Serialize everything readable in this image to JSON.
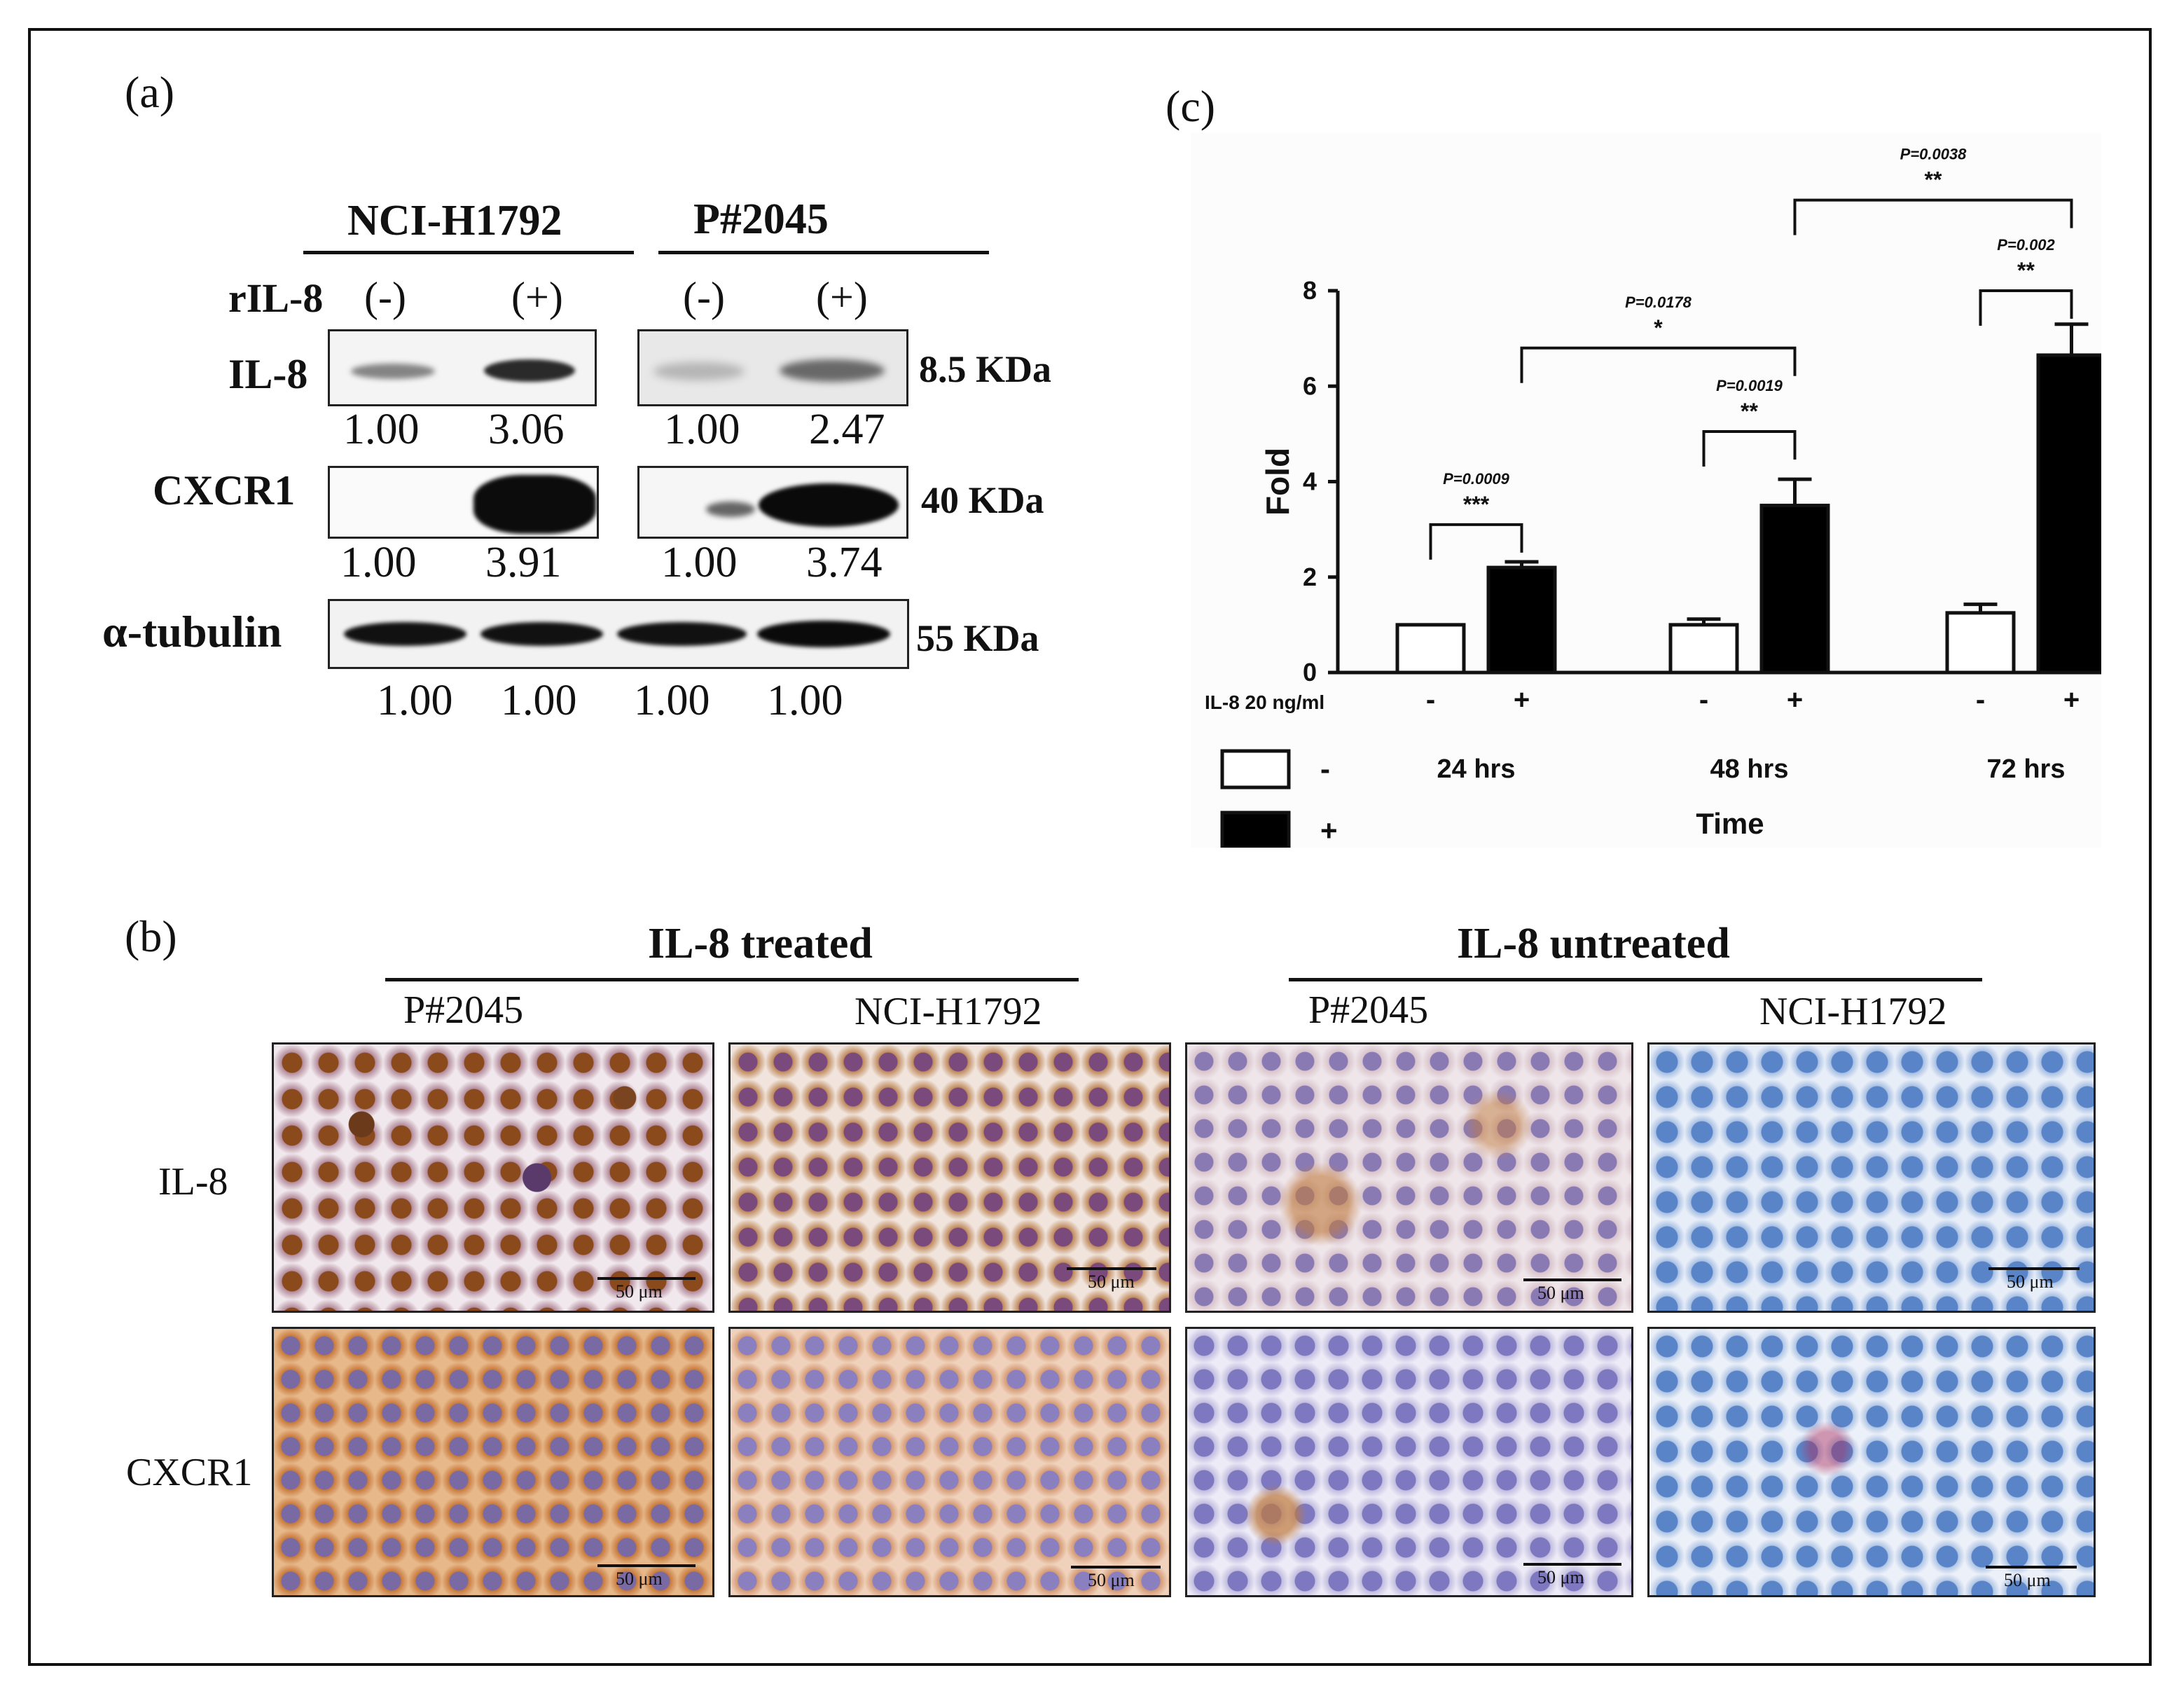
{
  "panel_a": {
    "label": "(a)",
    "cell_lines": [
      "NCI-H1792",
      "P#2045"
    ],
    "treatment_label": "rIL-8",
    "treatment_states": [
      "(-)",
      "(+)",
      "(-)",
      "(+)"
    ],
    "rows": [
      {
        "name": "IL-8",
        "size": "8.5 KDa",
        "values": [
          "1.00",
          "3.06",
          "1.00",
          "2.47"
        ]
      },
      {
        "name": "CXCR1",
        "size": "40 KDa",
        "values": [
          "1.00",
          "3.91",
          "1.00",
          "3.74"
        ]
      },
      {
        "name": "α-tubulin",
        "size": "55 KDa",
        "values": [
          "1.00",
          "1.00",
          "1.00",
          "1.00"
        ]
      }
    ]
  },
  "panel_b": {
    "label": "(b)",
    "groups": [
      "IL-8 treated",
      "IL-8 untreated"
    ],
    "columns": [
      "P#2045",
      "NCI-H1792",
      "P#2045",
      "NCI-H1792"
    ],
    "row_labels": [
      "IL-8",
      "CXCR1"
    ],
    "scale_label": "50 μm",
    "stain_colors": {
      "brown": "#8a4a1c",
      "purple": "#6e5aa0",
      "blue": "#5a84c8",
      "orange": "#c07a3c"
    }
  },
  "panel_c": {
    "label": "(c)",
    "chart_data": {
      "type": "bar",
      "title": "",
      "ylabel": "Fold",
      "xlabel": "Time",
      "ylim": [
        0,
        8
      ],
      "yticks": [
        0,
        2,
        4,
        6,
        8
      ],
      "categories": [
        "24 hrs",
        "48 hrs",
        "72 hrs"
      ],
      "treatment_label": "IL-8 20 ng/ml",
      "treatment_marks": [
        "-",
        "+"
      ],
      "series": [
        {
          "name": "-",
          "color": "#ffffff",
          "values": [
            1.0,
            1.0,
            1.25
          ],
          "errors": [
            0.0,
            0.12,
            0.18
          ]
        },
        {
          "name": "+",
          "color": "#000000",
          "values": [
            2.2,
            3.5,
            6.65
          ],
          "errors": [
            0.12,
            0.55,
            0.65
          ]
        }
      ],
      "annotations": [
        {
          "p": "P=0.0009",
          "stars": "***",
          "from": [
            0,
            0
          ],
          "to": [
            0,
            1
          ]
        },
        {
          "p": "P=0.0019",
          "stars": "**",
          "from": [
            1,
            0
          ],
          "to": [
            1,
            1
          ]
        },
        {
          "p": "P=0.002",
          "stars": "**",
          "from": [
            2,
            0
          ],
          "to": [
            2,
            1
          ]
        },
        {
          "p": "P=0.0178",
          "stars": "*",
          "from": [
            0,
            1
          ],
          "to": [
            1,
            1
          ]
        },
        {
          "p": "P=0.0038",
          "stars": "**",
          "from": [
            1,
            1
          ],
          "to": [
            2,
            1
          ]
        }
      ],
      "legend": [
        {
          "label": "-",
          "color": "#ffffff"
        },
        {
          "label": "+",
          "color": "#000000"
        }
      ]
    }
  }
}
